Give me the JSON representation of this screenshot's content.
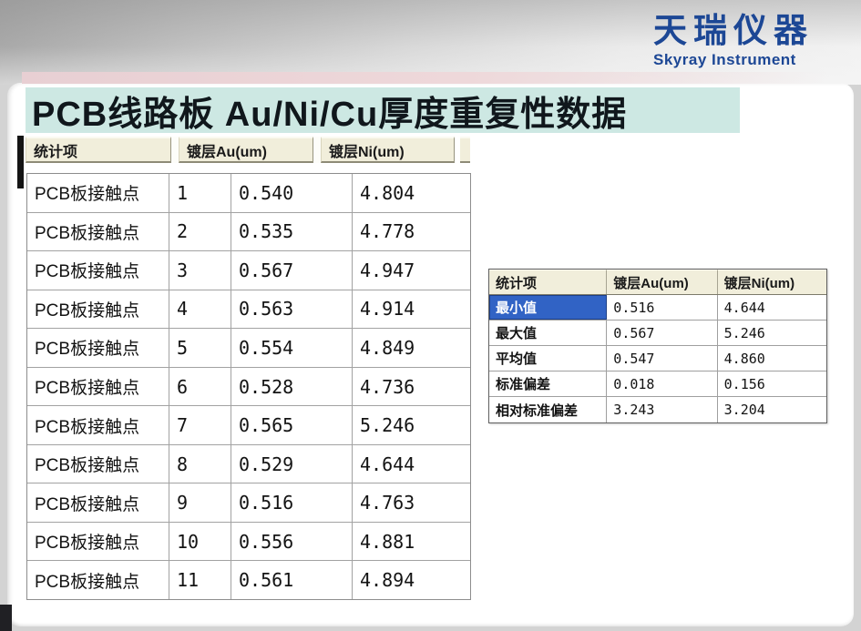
{
  "header": {
    "logo_chinese": "天瑞仪器",
    "logo_english": "Skyray Instrument"
  },
  "title": "PCB线路板 Au/Ni/Cu厚度重复性数据",
  "measurement_table": {
    "headers": [
      "统计项",
      "镀层Au(um)",
      "镀层Ni(um)"
    ],
    "rows": [
      {
        "label": "PCB板接触点",
        "index": "1",
        "au": "0.540",
        "ni": "4.804"
      },
      {
        "label": "PCB板接触点",
        "index": "2",
        "au": "0.535",
        "ni": "4.778"
      },
      {
        "label": "PCB板接触点",
        "index": "3",
        "au": "0.567",
        "ni": "4.947"
      },
      {
        "label": "PCB板接触点",
        "index": "4",
        "au": "0.563",
        "ni": "4.914"
      },
      {
        "label": "PCB板接触点",
        "index": "5",
        "au": "0.554",
        "ni": "4.849"
      },
      {
        "label": "PCB板接触点",
        "index": "6",
        "au": "0.528",
        "ni": "4.736"
      },
      {
        "label": "PCB板接触点",
        "index": "7",
        "au": "0.565",
        "ni": "5.246"
      },
      {
        "label": "PCB板接触点",
        "index": "8",
        "au": "0.529",
        "ni": "4.644"
      },
      {
        "label": "PCB板接触点",
        "index": "9",
        "au": "0.516",
        "ni": "4.763"
      },
      {
        "label": "PCB板接触点",
        "index": "10",
        "au": "0.556",
        "ni": "4.881"
      },
      {
        "label": "PCB板接触点",
        "index": "11",
        "au": "0.561",
        "ni": "4.894"
      }
    ]
  },
  "stats_table": {
    "headers": [
      "统计项",
      "镀层Au(um)",
      "镀层Ni(um)"
    ],
    "rows": [
      {
        "label": "最小值",
        "au": "0.516",
        "ni": "4.644",
        "selected": true
      },
      {
        "label": "最大值",
        "au": "0.567",
        "ni": "5.246",
        "selected": false
      },
      {
        "label": "平均值",
        "au": "0.547",
        "ni": "4.860",
        "selected": false
      },
      {
        "label": "标准偏差",
        "au": "0.018",
        "ni": "0.156",
        "selected": false
      },
      {
        "label": "相对标准偏差",
        "au": "3.243",
        "ni": "3.204",
        "selected": false
      }
    ]
  },
  "colors": {
    "title_band": "#cde8e3",
    "table_header_bg": "#f1eedb",
    "selection_blue": "#3163c5",
    "logo_blue": "#1c4795"
  }
}
